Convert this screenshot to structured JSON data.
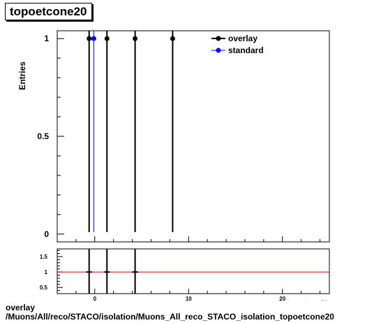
{
  "title": "topoetcone20",
  "footer": {
    "line1": "overlay",
    "line2": "/Muons/All/reco/STACO/isolation/Muons_All_reco_STACO_isolation_topoetcone20"
  },
  "chart_data": [
    {
      "type": "scatter",
      "title": "topoetcone20",
      "ylabel": "Entries",
      "xlabel": "topoetcone20",
      "xlim": [
        -4,
        25
      ],
      "ylim": [
        -0.04,
        1.04
      ],
      "yticks": [
        0,
        0.5,
        1
      ],
      "ytick_labels": [
        "0",
        "0.5",
        "1"
      ],
      "legend_position": "top-right",
      "series": [
        {
          "name": "overlay",
          "color": "#000000",
          "x": [
            -0.6,
            1.3,
            4.3,
            8.3
          ],
          "y": [
            1,
            1,
            1,
            1
          ]
        },
        {
          "name": "standard",
          "color": "#0000ff",
          "x": [
            -0.1
          ],
          "y": [
            1
          ]
        }
      ]
    },
    {
      "type": "scatter",
      "xlim": [
        -4,
        25
      ],
      "ylim": [
        0.3,
        1.75
      ],
      "xticks": [
        0,
        10,
        20
      ],
      "xtick_labels": [
        "0",
        "10",
        "20"
      ],
      "yticks": [
        0.5,
        1,
        1.5
      ],
      "ytick_labels": [
        "0.5",
        "1",
        "1.5"
      ],
      "reference_line": {
        "y": 1,
        "color": "#cc0000"
      },
      "series": [
        {
          "name": "",
          "color": "#000000",
          "x": [
            -0.6,
            1.3,
            4.3
          ],
          "y": [
            1,
            1,
            1
          ]
        }
      ]
    }
  ]
}
